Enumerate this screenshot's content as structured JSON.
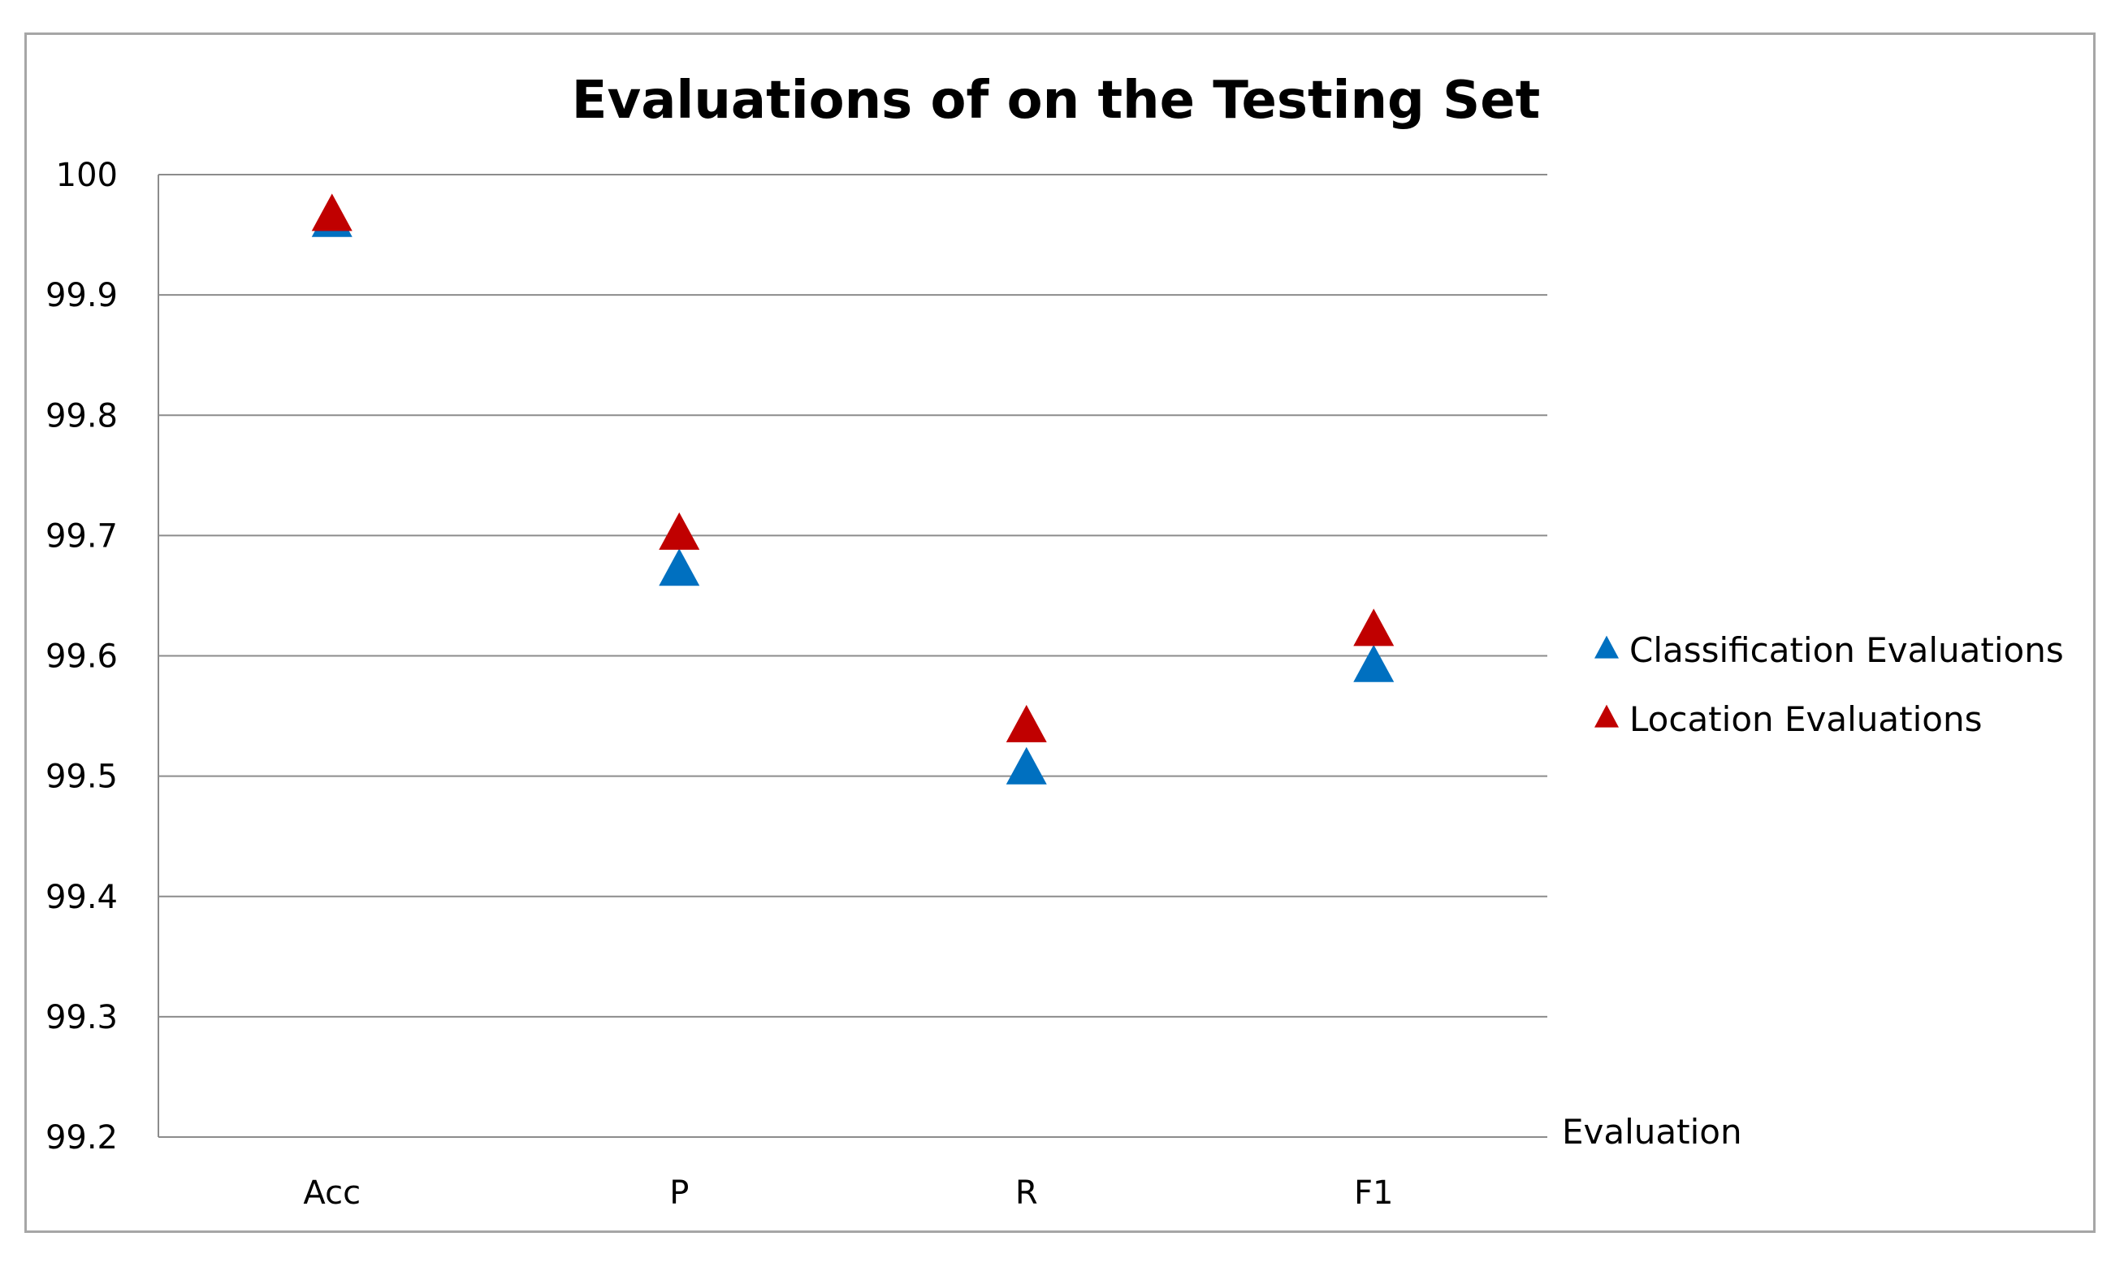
{
  "chart_data": {
    "type": "scatter",
    "title": "Evaluations of on the Testing Set",
    "xlabel": "Evaluation",
    "ylabel": "",
    "categories": [
      "Acc",
      "P",
      "R",
      "F1"
    ],
    "ylim": [
      99.2,
      100
    ],
    "yticks": [
      "99.2",
      "99.3",
      "99.4",
      "99.5",
      "99.6",
      "99.7",
      "99.8",
      "99.9",
      "100"
    ],
    "grid": true,
    "legend_position": "right",
    "marker": "triangle",
    "series": [
      {
        "name": "Classification Evaluations",
        "color": "#0070C0",
        "values": [
          99.96,
          99.67,
          99.505,
          99.59
        ]
      },
      {
        "name": "Location Evaluations",
        "color": "#C00000",
        "values": [
          99.965,
          99.7,
          99.54,
          99.62
        ]
      }
    ]
  }
}
